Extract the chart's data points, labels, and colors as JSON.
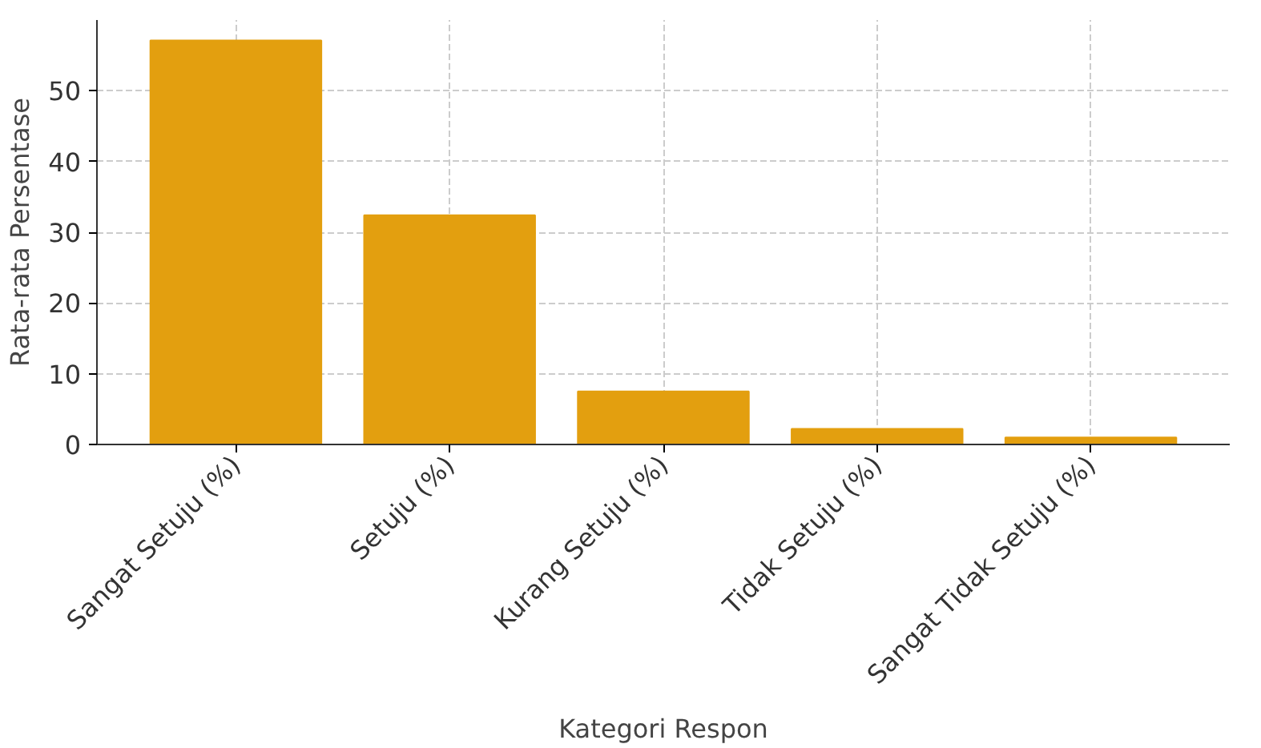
{
  "chart_data": {
    "type": "bar",
    "xlabel": "Kategori Respon",
    "ylabel": "Rata-rata Persentase",
    "categories": [
      "Sangat Setuju (%)",
      "Setuju (%)",
      "Kurang Setuju (%)",
      "Tidak Setuju (%)",
      "Sangat Tidak Setuju (%)"
    ],
    "values": [
      57.1,
      32.4,
      7.5,
      2.2,
      1.0
    ],
    "color": "#e39f0f",
    "ylim": [
      0,
      60
    ],
    "yticks": [
      0,
      10,
      20,
      30,
      40,
      50
    ],
    "grid": true
  }
}
